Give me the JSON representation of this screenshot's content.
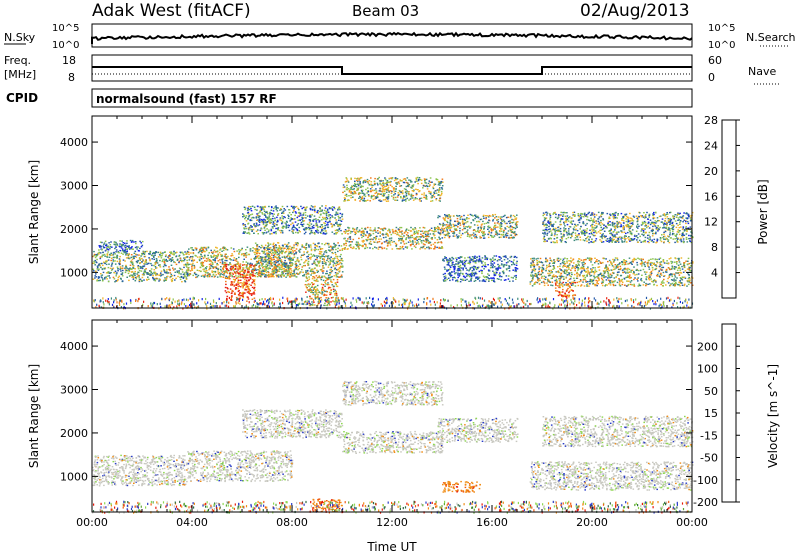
{
  "header": {
    "station": "Adak West (fitACF)",
    "beam": "Beam 03",
    "date": "02/Aug/2013"
  },
  "top_panels": {
    "nsky_label": "N.Sky",
    "nsearch_label": "N.Search",
    "nsky_ticks": [
      "10^5",
      "10^0"
    ],
    "nsearch_ticks": [
      "10^5",
      "10^0"
    ],
    "freq_label_line1": "Freq.",
    "freq_label_line2": "[MHz]",
    "freq_ticks": [
      "18",
      "8"
    ],
    "nave_label": "Nave",
    "nave_ticks": [
      "60",
      "0"
    ],
    "cpid_label": "CPID",
    "cpid_text": "normalsound (fast) 157 RF"
  },
  "chart_data": [
    {
      "type": "heatmap",
      "name": "power",
      "ylabel": "Slant Range [km]",
      "yticks": [
        1000,
        2000,
        3000,
        4000
      ],
      "ylim": [
        180,
        4600
      ],
      "xlim": [
        0,
        24
      ],
      "colorbar_label": "Power [dB]",
      "colorbar_ticks": [
        4,
        8,
        12,
        16,
        20,
        24,
        28
      ],
      "colorbar_colors": [
        "#1424e8",
        "#2358a8",
        "#3c8a7c",
        "#8cc44c",
        "#f0b428",
        "#f07818",
        "#e82010"
      ],
      "scatter_bands": [
        {
          "t0": 0.0,
          "t1": 3.8,
          "r0": 800,
          "r1": 1500,
          "level": 0.45
        },
        {
          "t0": 0.2,
          "t1": 2.0,
          "r0": 1500,
          "r1": 1750,
          "level": 0.25
        },
        {
          "t0": 3.8,
          "t1": 8.0,
          "r0": 900,
          "r1": 1600,
          "level": 0.55
        },
        {
          "t0": 5.3,
          "t1": 6.5,
          "r0": 350,
          "r1": 1200,
          "level": 0.9
        },
        {
          "t0": 6.5,
          "t1": 10.0,
          "r0": 900,
          "r1": 1700,
          "level": 0.5
        },
        {
          "t0": 6.0,
          "t1": 10.0,
          "r0": 1900,
          "r1": 2550,
          "level": 0.35
        },
        {
          "t0": 8.5,
          "t1": 9.8,
          "r0": 250,
          "r1": 900,
          "level": 0.6
        },
        {
          "t0": 10.0,
          "t1": 14.0,
          "r0": 1550,
          "r1": 2050,
          "level": 0.55
        },
        {
          "t0": 10.0,
          "t1": 14.0,
          "r0": 2650,
          "r1": 3200,
          "level": 0.5
        },
        {
          "t0": 13.8,
          "t1": 17.0,
          "r0": 1800,
          "r1": 2350,
          "level": 0.5
        },
        {
          "t0": 14.0,
          "t1": 17.0,
          "r0": 800,
          "r1": 1400,
          "level": 0.25
        },
        {
          "t0": 17.5,
          "t1": 24.0,
          "r0": 700,
          "r1": 1350,
          "level": 0.5
        },
        {
          "t0": 18.0,
          "t1": 24.0,
          "r0": 1700,
          "r1": 2400,
          "level": 0.4
        },
        {
          "t0": 18.5,
          "t1": 19.3,
          "r0": 450,
          "r1": 800,
          "level": 0.85
        }
      ]
    },
    {
      "type": "heatmap",
      "name": "velocity",
      "xlabel": "Time UT",
      "ylabel": "Slant Range [km]",
      "xticks": [
        "00:00",
        "04:00",
        "08:00",
        "12:00",
        "16:00",
        "20:00",
        "00:00"
      ],
      "yticks": [
        1000,
        2000,
        3000,
        4000
      ],
      "ylim": [
        180,
        4600
      ],
      "xlim": [
        0,
        24
      ],
      "colorbar_label": "Velocity [m s^-1]",
      "colorbar_ticks": [
        200,
        100,
        50,
        15,
        -15,
        -50,
        -100,
        -200
      ],
      "colorbar_colors": [
        "#2a3cc8",
        "#2f6a44",
        "#5ea838",
        "#8ed850",
        "#c8c8c0",
        "#f08c14",
        "#f05a10",
        "#e81808"
      ],
      "scatter_bands": [
        {
          "t0": 0.0,
          "t1": 3.8,
          "r0": 800,
          "r1": 1500,
          "level": 0.5
        },
        {
          "t0": 3.8,
          "t1": 8.0,
          "r0": 900,
          "r1": 1600,
          "level": 0.5
        },
        {
          "t0": 6.0,
          "t1": 10.0,
          "r0": 1900,
          "r1": 2550,
          "level": 0.5
        },
        {
          "t0": 10.0,
          "t1": 14.0,
          "r0": 1550,
          "r1": 2050,
          "level": 0.5
        },
        {
          "t0": 10.0,
          "t1": 14.0,
          "r0": 2650,
          "r1": 3200,
          "level": 0.5
        },
        {
          "t0": 13.8,
          "t1": 17.0,
          "r0": 1800,
          "r1": 2350,
          "level": 0.5
        },
        {
          "t0": 17.5,
          "t1": 24.0,
          "r0": 700,
          "r1": 1350,
          "level": 0.5
        },
        {
          "t0": 18.0,
          "t1": 24.0,
          "r0": 1700,
          "r1": 2400,
          "level": 0.5
        },
        {
          "t0": 8.8,
          "t1": 10.0,
          "r0": 200,
          "r1": 500,
          "level": 0.95
        },
        {
          "t0": 14.0,
          "t1": 15.5,
          "r0": 650,
          "r1": 900,
          "level": 0.85
        }
      ]
    }
  ]
}
